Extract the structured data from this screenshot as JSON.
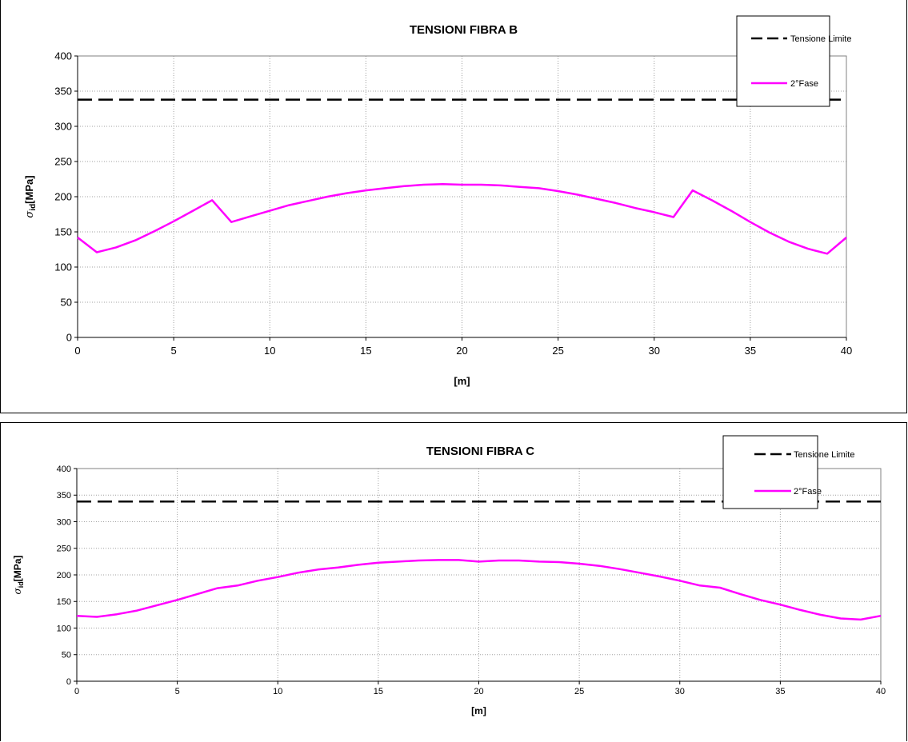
{
  "chart_data": [
    {
      "type": "line",
      "title": "TENSIONI FIBRA B",
      "xlabel": "[m]",
      "ylabel_main": "σ",
      "ylabel_sub": "id",
      "ylabel_rest": "[MPa]",
      "xlim": [
        0,
        40
      ],
      "ylim": [
        0,
        400
      ],
      "xticks": [
        0,
        5,
        10,
        15,
        20,
        25,
        30,
        35,
        40
      ],
      "yticks": [
        0,
        50,
        100,
        150,
        200,
        250,
        300,
        350,
        400
      ],
      "grid": true,
      "legend_position": "top-right",
      "series": [
        {
          "name": "Tensione Limite",
          "style": "dashed",
          "color": "#000000",
          "x": [
            0,
            40
          ],
          "y": [
            338,
            338
          ]
        },
        {
          "name": "2°Fase",
          "style": "solid",
          "color": "#ff00ff",
          "x": [
            0,
            1,
            2,
            3,
            4,
            5,
            6,
            7,
            8,
            9,
            10,
            11,
            12,
            13,
            14,
            15,
            16,
            17,
            18,
            19,
            20,
            21,
            22,
            23,
            24,
            25,
            26,
            27,
            28,
            29,
            30,
            31,
            32,
            33,
            34,
            35,
            36,
            37,
            38,
            39,
            40
          ],
          "y": [
            142,
            121,
            128,
            138,
            151,
            165,
            180,
            195,
            164,
            172,
            180,
            188,
            194,
            200,
            205,
            209,
            212,
            215,
            217,
            218,
            217,
            217,
            216,
            214,
            212,
            208,
            203,
            197,
            191,
            184,
            178,
            171,
            209,
            195,
            180,
            164,
            149,
            136,
            126,
            119,
            142
          ]
        }
      ]
    },
    {
      "type": "line",
      "title": "TENSIONI FIBRA C",
      "xlabel": "[m]",
      "ylabel_main": "σ",
      "ylabel_sub": "id",
      "ylabel_rest": "[MPa]",
      "xlim": [
        0,
        40
      ],
      "ylim": [
        0,
        400
      ],
      "xticks": [
        0,
        5,
        10,
        15,
        20,
        25,
        30,
        35,
        40
      ],
      "yticks": [
        0,
        50,
        100,
        150,
        200,
        250,
        300,
        350,
        400
      ],
      "grid": true,
      "legend_position": "top-right",
      "series": [
        {
          "name": "Tensione Limite",
          "style": "dashed",
          "color": "#000000",
          "x": [
            0,
            40
          ],
          "y": [
            338,
            338
          ]
        },
        {
          "name": "2°Fase",
          "style": "solid",
          "color": "#ff00ff",
          "x": [
            0,
            1,
            2,
            3,
            4,
            5,
            6,
            7,
            8,
            9,
            10,
            11,
            12,
            13,
            14,
            15,
            16,
            17,
            18,
            19,
            20,
            21,
            22,
            23,
            24,
            25,
            26,
            27,
            28,
            29,
            30,
            31,
            32,
            33,
            34,
            35,
            36,
            37,
            38,
            39,
            40
          ],
          "y": [
            123,
            121,
            126,
            133,
            143,
            153,
            164,
            175,
            180,
            189,
            196,
            204,
            210,
            214,
            219,
            223,
            225,
            227,
            228,
            228,
            225,
            227,
            227,
            225,
            224,
            221,
            217,
            211,
            204,
            197,
            189,
            180,
            176,
            164,
            153,
            144,
            134,
            125,
            118,
            116,
            123
          ]
        }
      ]
    }
  ]
}
